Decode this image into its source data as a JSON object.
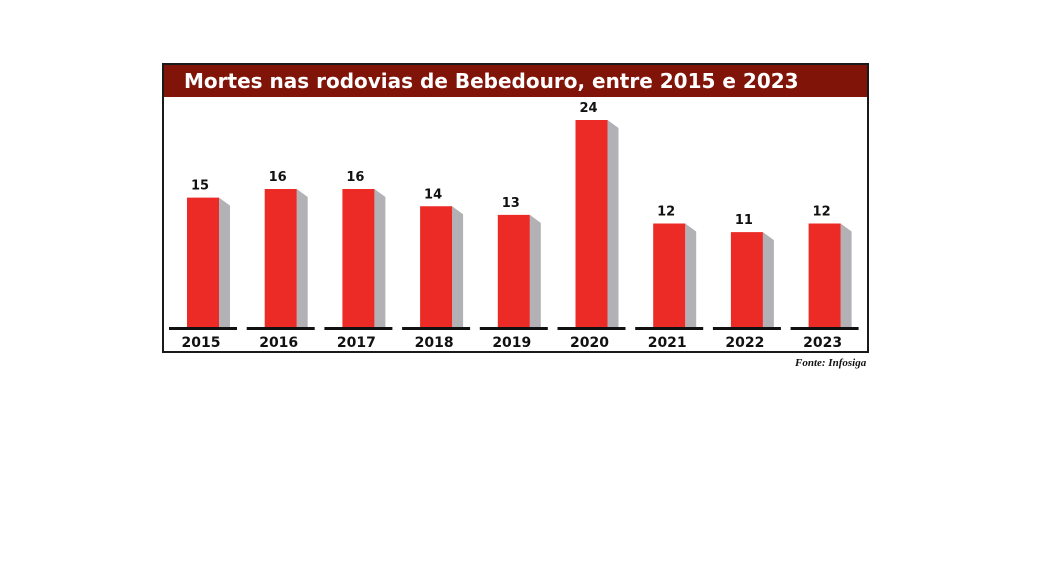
{
  "chart_data": {
    "type": "bar",
    "title": "Mortes nas rodovias de Bebedouro, entre 2015 e 2023",
    "categories": [
      "2015",
      "2016",
      "2017",
      "2018",
      "2019",
      "2020",
      "2021",
      "2022",
      "2023"
    ],
    "values": [
      15,
      16,
      16,
      14,
      13,
      24,
      12,
      11,
      12
    ],
    "xlabel": "",
    "ylabel": "",
    "ylim": [
      0,
      24
    ],
    "grid": false,
    "data_labels": true,
    "colors": {
      "bar": "#ec2a26",
      "bar_shadow": "#b2b2b6",
      "title_bar": "#801408",
      "baseline": "#111111"
    }
  },
  "source": "Fonte: Infosiga"
}
